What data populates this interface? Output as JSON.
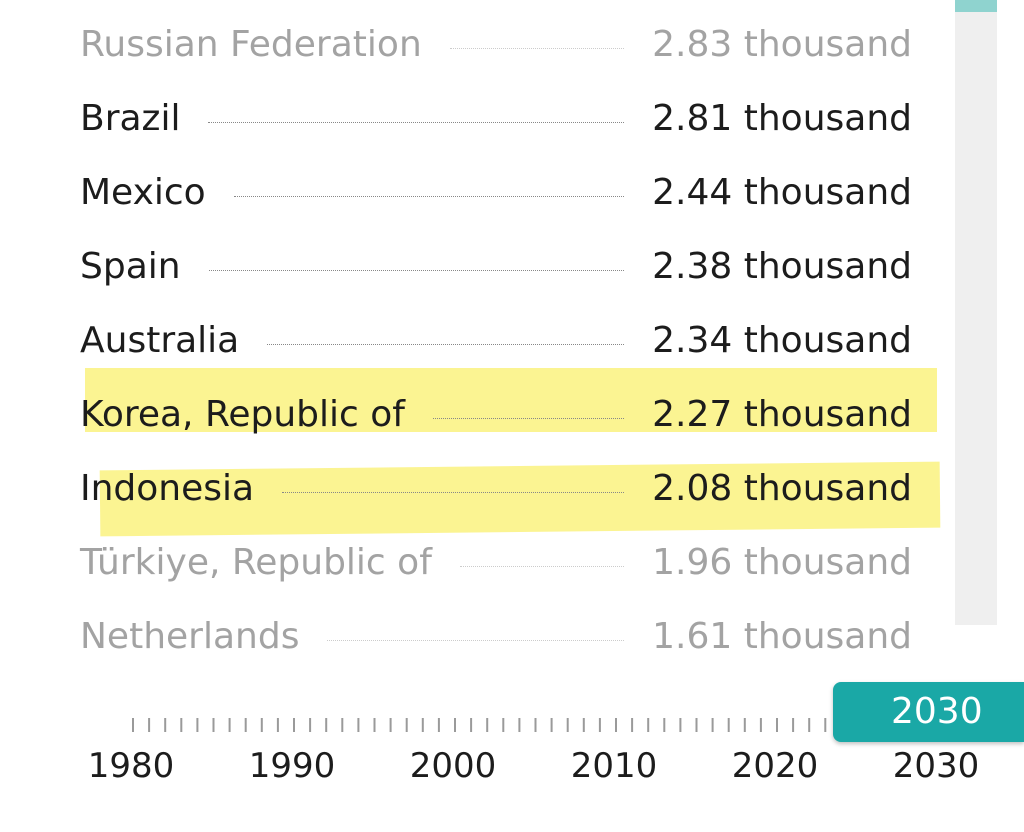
{
  "list": {
    "rows": [
      {
        "name": "Russian Federation",
        "value": "2.83 thousand"
      },
      {
        "name": "Brazil",
        "value": "2.81 thousand"
      },
      {
        "name": "Mexico",
        "value": "2.44 thousand"
      },
      {
        "name": "Spain",
        "value": "2.38 thousand"
      },
      {
        "name": "Australia",
        "value": "2.34 thousand"
      },
      {
        "name": "Korea, Republic of",
        "value": "2.27 thousand"
      },
      {
        "name": "Indonesia",
        "value": "2.08 thousand"
      },
      {
        "name": "Türkiye, Republic of",
        "value": "1.96 thousand"
      },
      {
        "name": "Netherlands",
        "value": "1.61 thousand"
      }
    ]
  },
  "timeline": {
    "labels": [
      "1980",
      "1990",
      "2000",
      "2010",
      "2020",
      "2030"
    ],
    "selected": "2030"
  }
}
